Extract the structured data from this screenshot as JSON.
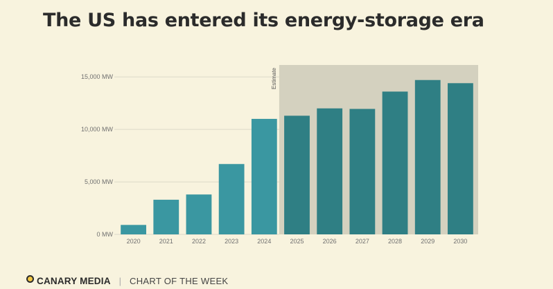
{
  "title": "The US has entered its energy-storage era",
  "chart_data": {
    "type": "bar",
    "title": "The US has entered its energy-storage era",
    "xlabel": "",
    "ylabel": "",
    "ylim": [
      0,
      16000
    ],
    "yticks": [
      0,
      5000,
      10000,
      15000
    ],
    "ytick_labels": [
      "0 MW",
      "5,000 MW",
      "10,000 MW",
      "15,000 MW"
    ],
    "categories": [
      "2020",
      "2021",
      "2022",
      "2023",
      "2024",
      "2025",
      "2026",
      "2027",
      "2028",
      "2029",
      "2030"
    ],
    "values": [
      900,
      3300,
      3800,
      6700,
      11000,
      11300,
      12000,
      11950,
      13600,
      14700,
      14400
    ],
    "estimate_from_index": 5,
    "estimate_label": "Estimate",
    "colors": {
      "actual": "#3a97a1",
      "estimate": "#2f7f84",
      "estimate_bg": "#d4d1bf",
      "grid": "#dcd9c8",
      "tick_text": "#6f6f6f"
    }
  },
  "footer": {
    "brand": "CANARY MEDIA",
    "separator": "|",
    "series": "CHART OF THE WEEK"
  }
}
